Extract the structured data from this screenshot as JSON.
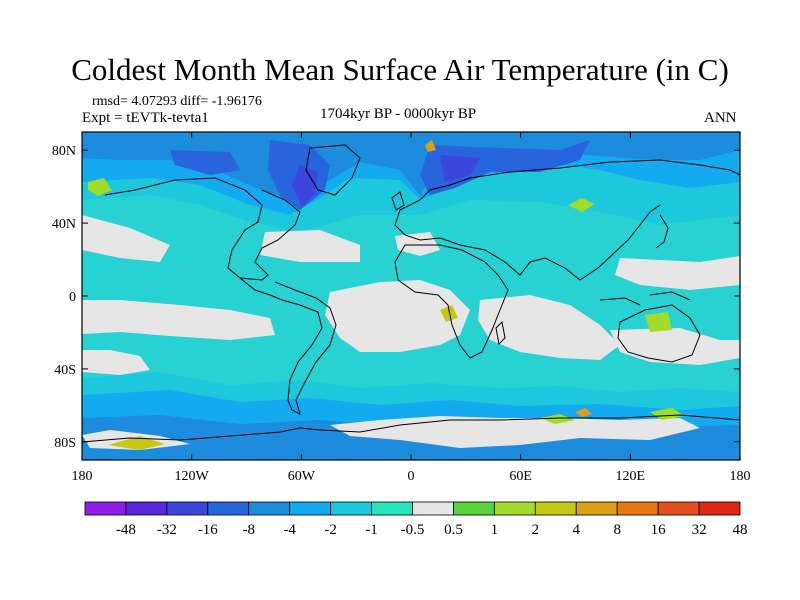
{
  "header": {
    "title": "Coldest Month Mean Surface Air Temperature (in C)",
    "stats": "rmsd= 4.07293 diff= -1.96176",
    "expt": "Expt = tEVTk-tevta1",
    "period": "1704kyr BP - 0000kyr BP",
    "season": "ANN"
  },
  "map": {
    "type": "heatmap",
    "projection": "cylindrical-equidistant",
    "lon_range": [
      -180,
      180
    ],
    "lat_range": [
      -90,
      90
    ],
    "x_ticks": [
      {
        "lon": -180,
        "label": "180"
      },
      {
        "lon": -120,
        "label": "120W"
      },
      {
        "lon": -60,
        "label": "60W"
      },
      {
        "lon": 0,
        "label": "0"
      },
      {
        "lon": 60,
        "label": "60E"
      },
      {
        "lon": 120,
        "label": "120E"
      },
      {
        "lon": 180,
        "label": "180"
      }
    ],
    "y_ticks": [
      {
        "lat": 80,
        "label": "80N"
      },
      {
        "lat": 40,
        "label": "40N"
      },
      {
        "lat": 0,
        "label": "0"
      },
      {
        "lat": -40,
        "label": "40S"
      },
      {
        "lat": -80,
        "label": "80S"
      }
    ],
    "ocean_base_color": "#28d2d2"
  },
  "colorbar": {
    "colors": [
      "#8c1ee6",
      "#5a28dc",
      "#3c46dc",
      "#2864dc",
      "#1e8cdc",
      "#14aaf0",
      "#1ec8dc",
      "#28e6be",
      "#e6e6e6",
      "#5ad23c",
      "#a0dc28",
      "#c8c814",
      "#dca014",
      "#e67814",
      "#e6501e",
      "#dc2814"
    ],
    "labels": [
      "-48",
      "-32",
      "-16",
      "-8",
      "-4",
      "-2",
      "-1",
      "-0.5",
      "0.5",
      "1",
      "2",
      "4",
      "8",
      "16",
      "32",
      "48"
    ]
  }
}
